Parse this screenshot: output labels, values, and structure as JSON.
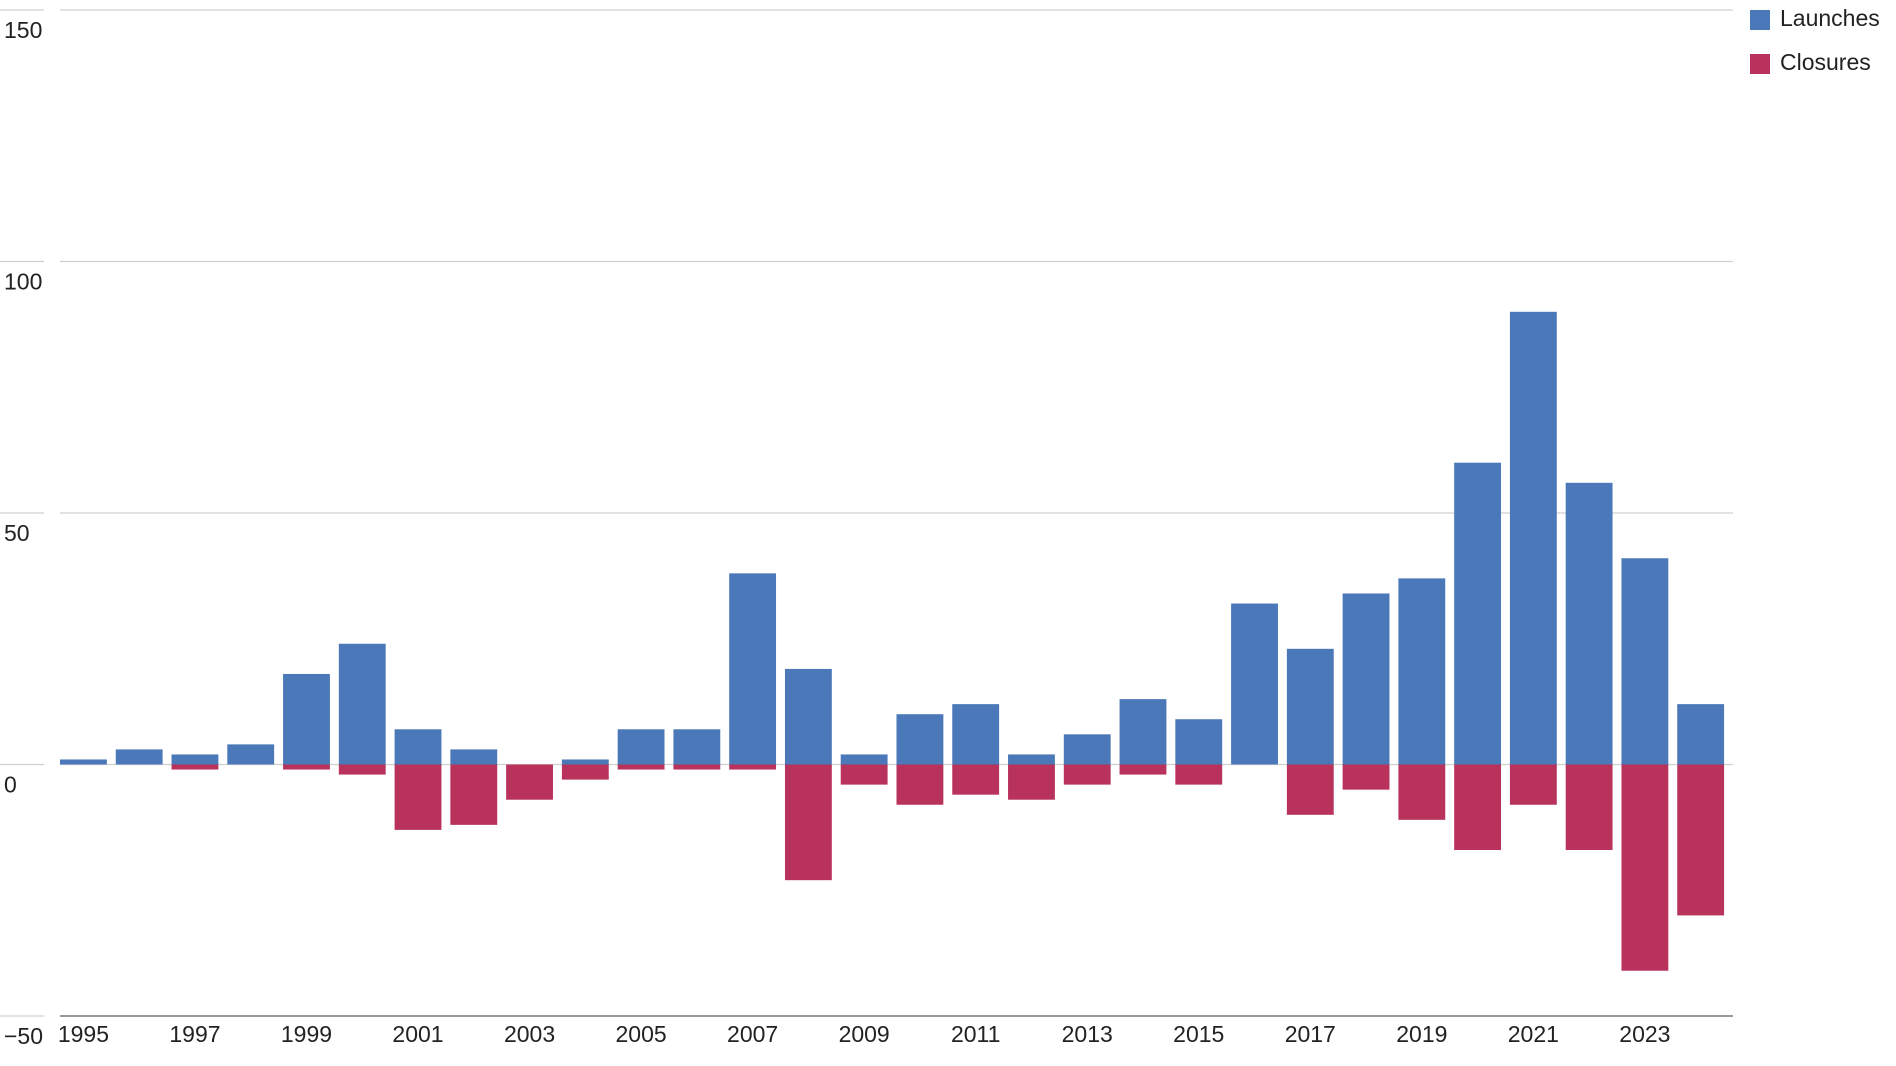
{
  "chart_data": {
    "type": "bar",
    "categories": [
      "1995",
      null,
      "1997",
      null,
      "1999",
      null,
      "2001",
      null,
      "2003",
      null,
      "2005",
      null,
      "2007",
      null,
      "2009",
      null,
      "2011",
      null,
      "2013",
      null,
      "2015",
      null,
      "2017",
      null,
      "2019",
      null,
      "2021",
      null,
      "2023",
      null
    ],
    "series": [
      {
        "name": "Launches",
        "color": "#4a78b8",
        "values": [
          1,
          3,
          2,
          4,
          18,
          24,
          7,
          3,
          0,
          1,
          7,
          7,
          38,
          19,
          2,
          10,
          12,
          2,
          6,
          13,
          9,
          32,
          23,
          34,
          37,
          60,
          90,
          56,
          41,
          12
        ]
      },
      {
        "name": "Closures",
        "color": "#b8325c",
        "values": [
          0,
          0,
          -1,
          0,
          -1,
          -2,
          -13,
          -12,
          -7,
          -3,
          -1,
          -1,
          -1,
          -23,
          -4,
          -8,
          -6,
          -7,
          -4,
          -2,
          -4,
          0,
          -10,
          -5,
          -11,
          -17,
          -8,
          -17,
          -41,
          -30
        ]
      }
    ],
    "ylim": [
      -50,
      150
    ],
    "yticks": [
      {
        "value": -50,
        "label": "−50"
      },
      0,
      50,
      100,
      150
    ],
    "grid": true,
    "legend": "top-right"
  }
}
